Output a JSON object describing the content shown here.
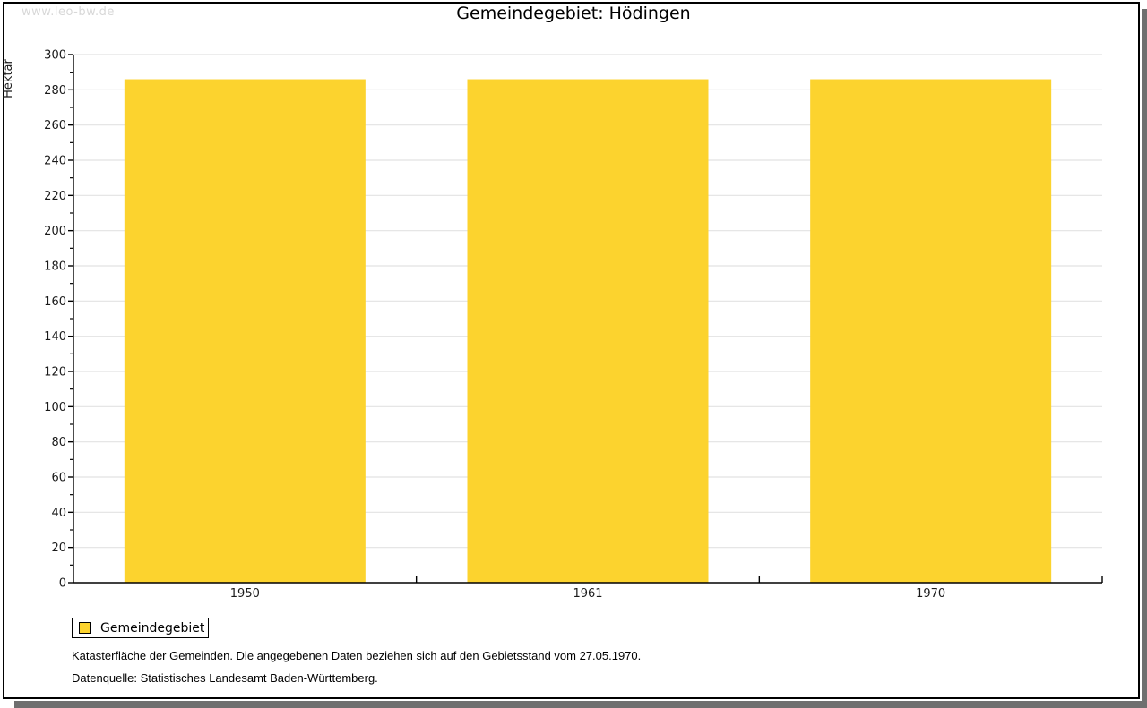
{
  "watermark": "www.leo-bw.de",
  "title": "Gemeindegebiet: Hödingen",
  "legend": {
    "label": "Gemeindegebiet",
    "swatch_color": "#fcd32e"
  },
  "footer": {
    "line1": "Katasterfläche der Gemeinden. Die angegebenen Daten beziehen sich auf den Gebietsstand vom 27.05.1970.",
    "line2": "Datenquelle: Statistisches Landesamt Baden-Württemberg."
  },
  "chart_data": {
    "type": "bar",
    "title": "Gemeindegebiet: Hödingen",
    "categories": [
      "1950",
      "1961",
      "1970"
    ],
    "series": [
      {
        "name": "Gemeindegebiet",
        "color": "#fcd32e",
        "values": [
          286,
          286,
          286
        ]
      }
    ],
    "xlabel": "",
    "ylabel": "Hektar",
    "ylim": [
      0,
      300
    ],
    "ytick_major": 20,
    "ytick_minor": 10,
    "grid": true,
    "legend_position": "bottom-left"
  },
  "colors": {
    "bar": "#fcd32e",
    "grid": "#e2e2e2",
    "axis": "#000000",
    "tick_label": "#1a1a1a",
    "watermark": "#d8d8d8",
    "shadow": "#6f6f6f"
  }
}
